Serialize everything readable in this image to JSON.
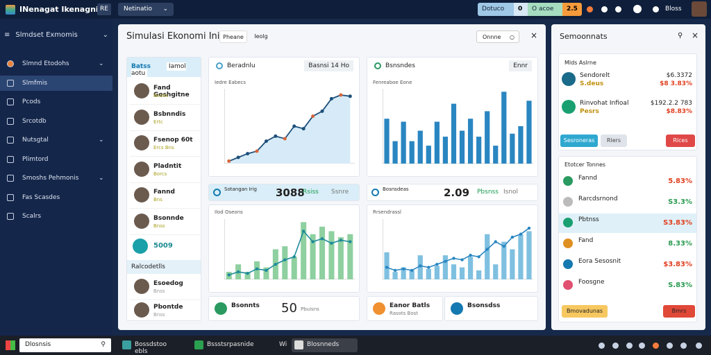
{
  "topbar": {
    "app_title": "INenagat Ikenagnit",
    "badge": "RE",
    "dropdown": "Netinatio",
    "stats": [
      "Dotuco",
      "0",
      "O acoe",
      "2.5"
    ],
    "user": "Bloss"
  },
  "sidebar": {
    "title": "Slmdset Exmomis",
    "items": [
      "Slmnd Etodohs",
      "Slmfmis",
      "Pcods",
      "Srcotdb",
      "Nutsgtal",
      "Plimtord",
      "Smoshs Pehmonis",
      "Fas Scasdes",
      "Scalrs"
    ]
  },
  "main": {
    "title": "Simulasi Ekonomi Iniga",
    "tabs": [
      "Pheane",
      "Ieolg"
    ],
    "button": "Onnne",
    "contacts": {
      "header": "Batss",
      "filter": "Iamol aotu",
      "items": [
        {
          "name": "Fand Goshgitne",
          "sub": "Beahs"
        },
        {
          "name": "Bsbnndis",
          "sub": "Ertc"
        },
        {
          "name": "Fsenop 60t",
          "sub": "Ercs  Bns"
        },
        {
          "name": "Pladntit",
          "sub": "Borcs"
        },
        {
          "name": "Fannd",
          "sub": "Bns"
        },
        {
          "name": "Bsonnde",
          "sub": "Bnss"
        }
      ],
      "total": "5009",
      "group": "Ralcodetlls",
      "group_items": [
        {
          "name": "Esoedog",
          "sub": "Bnss"
        },
        {
          "name": "Pbontde",
          "sub": "Bnss"
        }
      ]
    },
    "charts": [
      {
        "title": "Beradnlu",
        "tag": "Basnsi 14 Ho",
        "subtitle": "Iedre Eabecs",
        "ylim": [
          0,
          60
        ],
        "color": "#1d4f7a",
        "values": [
          2,
          5,
          8,
          10,
          18,
          22,
          20,
          30,
          28,
          38,
          42,
          52,
          55,
          54
        ]
      },
      {
        "title": "Bsnsndes",
        "tag": "Ennr",
        "subtitle": "Fenreaboe Eone",
        "ylim": [
          0,
          50
        ],
        "color": "#2a86c1",
        "values": [
          30,
          15,
          28,
          15,
          22,
          12,
          28,
          18,
          40,
          22,
          30,
          18,
          35,
          12,
          48,
          20,
          25,
          42
        ]
      },
      {
        "title": "Ilod Oseons",
        "ylim": [
          0,
          40
        ],
        "color": "#8fd0a0",
        "line_color": "#1e8a9a",
        "values": [
          5,
          10,
          5,
          12,
          8,
          20,
          22,
          15,
          38,
          30,
          35,
          32,
          28,
          30
        ],
        "line": [
          3,
          5,
          4,
          7,
          6,
          10,
          13,
          15,
          32,
          25,
          27,
          24,
          26,
          25
        ]
      },
      {
        "title": "Rrsendrassl",
        "ylim": [
          0,
          40
        ],
        "color": "#7fc0e0",
        "line_color": "#2a86c1",
        "values": [
          18,
          5,
          8,
          6,
          16,
          7,
          9,
          16,
          10,
          8,
          15,
          6,
          30,
          10,
          25,
          20,
          30,
          32
        ],
        "line": [
          8,
          6,
          7,
          6,
          9,
          8,
          10,
          12,
          14,
          13,
          16,
          15,
          20,
          25,
          22,
          28,
          30,
          34
        ]
      }
    ],
    "stats": [
      {
        "label": "Sotangan Irig",
        "value": 3088,
        "chip1": "Rsiss",
        "chip2": "Ssnre"
      },
      {
        "label": "Bosnsdeas",
        "value": 2.09,
        "chip1": "Pbsnss",
        "chip2": "Isnol"
      }
    ],
    "bottom": [
      {
        "label": "Bsonnts",
        "value": 50,
        "sub": "Pbuisns"
      },
      {
        "label": "Eanor Batls",
        "sub": "Rasots Bost"
      },
      {
        "label": "Bsonsdss"
      }
    ]
  },
  "right": {
    "title": "Semoonnats",
    "section1": "Mlds Aslrne",
    "items1": [
      {
        "name": "Sendorelt",
        "sub": "S.deus",
        "value": "$6.3372",
        "change": "$8 3.83%"
      },
      {
        "name": "Rinvohat Infioal",
        "sub": "Pesrs",
        "value": "$192.2.2 783",
        "change": "$8.83%"
      }
    ],
    "buttons1": [
      "Sesroneras",
      "Rlers",
      "Rlces"
    ],
    "section2": "Etotcer Tonnes",
    "items2": [
      {
        "name": "Fannd",
        "value": "5.83%"
      },
      {
        "name": "Rarcdsrnond",
        "value": "S3.3%"
      },
      {
        "name": "Pbtnss",
        "value": "S3.83%"
      },
      {
        "name": "Fand",
        "value": "8.33%"
      },
      {
        "name": "Eora Sesosnit",
        "value": "$3.83%"
      },
      {
        "name": "Foosgne",
        "value": "S.83%"
      }
    ],
    "buttons2": [
      "Bmovadunas",
      "Bmrs"
    ]
  },
  "taskbar": {
    "search": "Dlosnsis",
    "apps": [
      "Bossdstoo ebls",
      "Bssstsrpasnide",
      "Wi",
      "Blosnneds"
    ]
  }
}
